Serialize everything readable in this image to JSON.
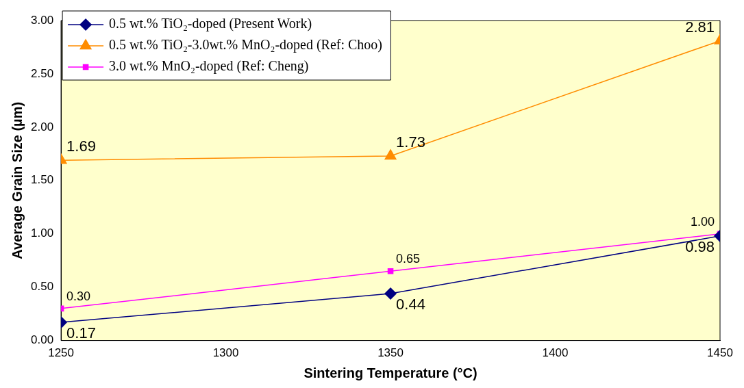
{
  "chart_data": {
    "type": "line",
    "xlabel": "Sintering Temperature (°C)",
    "ylabel": "Average Grain Size (µm)",
    "x": [
      1250,
      1350,
      1450
    ],
    "xlim": [
      1250,
      1450
    ],
    "xticks": [
      1250,
      1300,
      1350,
      1400,
      1450
    ],
    "ylim": [
      0,
      3
    ],
    "yticks": [
      {
        "value": 0,
        "label": "0.00"
      },
      {
        "value": 0.5,
        "label": "0.50"
      },
      {
        "value": 1,
        "label": "1.00"
      },
      {
        "value": 1.5,
        "label": "1.50"
      },
      {
        "value": 2,
        "label": "2.00"
      },
      {
        "value": 2.5,
        "label": "2.50"
      },
      {
        "value": 3,
        "label": "3.00"
      }
    ],
    "grid": false,
    "legend": "top left",
    "series": [
      {
        "name": "0.5 wt.% TiO₂-doped (Present Work)",
        "color": "#000080",
        "marker": "diamond",
        "values": [
          0.17,
          0.44,
          0.98
        ],
        "value_labels": [
          "0.17",
          "0.44",
          "0.98"
        ]
      },
      {
        "name": "0.5 wt.% TiO₂-3.0wt.% MnO₂-doped (Ref: Choo)",
        "color": "#ff8c00",
        "marker": "triangle",
        "values": [
          1.69,
          1.73,
          2.81
        ],
        "value_labels": [
          "1.69",
          "1.73",
          "2.81"
        ]
      },
      {
        "name": "3.0 wt.% MnO₂-doped (Ref: Cheng)",
        "color": "#ff00ff",
        "marker": "square",
        "values": [
          0.3,
          0.65,
          1.0
        ],
        "value_labels": [
          "0.30",
          "0.65",
          "1.00"
        ]
      }
    ]
  }
}
